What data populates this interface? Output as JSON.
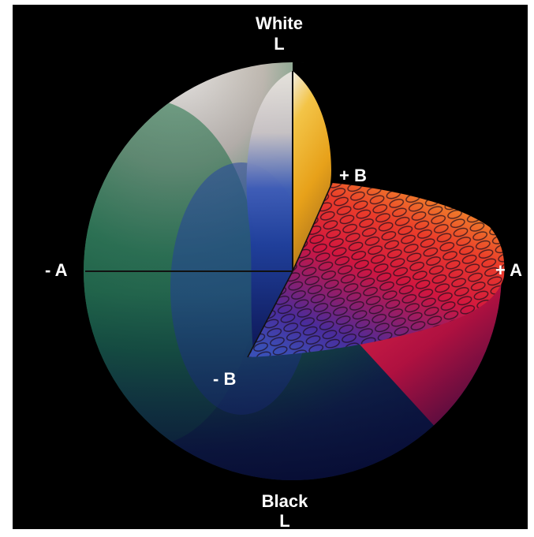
{
  "labels": {
    "top_title": "White",
    "top_axis": "L",
    "bottom_title": "Black",
    "bottom_axis": "L",
    "plus_b": "+ B",
    "minus_b": "- B",
    "minus_a": "- A",
    "plus_a": "+ A"
  },
  "colors": {
    "background": "#000000",
    "page": "#ffffff",
    "label": "#ffffff",
    "white_region": "#e8e3dc",
    "green_region": "#1f7a45",
    "blue_region": "#1d3f9e",
    "yellow_region": "#f0b21a",
    "red_region": "#e0143c",
    "dark_blue_region": "#0b0f48",
    "axis_line": "#111111"
  }
}
